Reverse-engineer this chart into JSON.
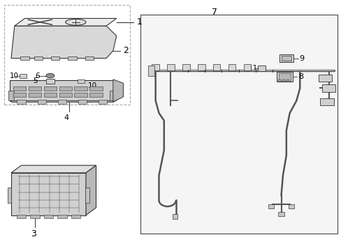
{
  "background_color": "#ffffff",
  "line_color": "#333333",
  "text_color": "#000000",
  "fig_width": 4.89,
  "fig_height": 3.6,
  "dpi": 100
}
